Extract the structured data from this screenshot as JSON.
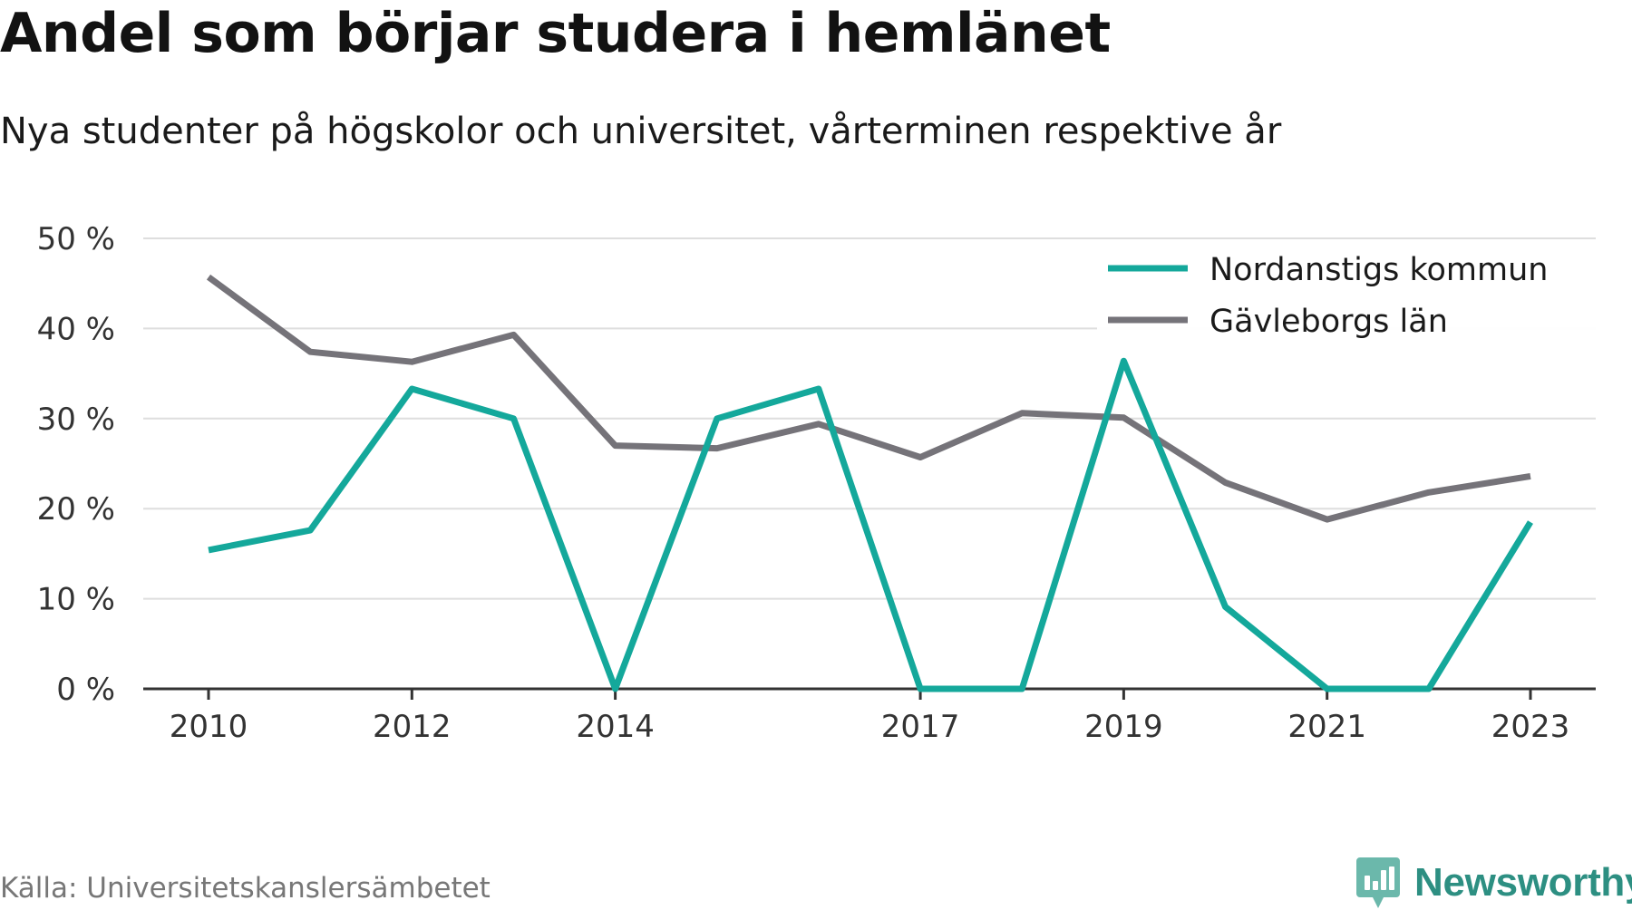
{
  "header": {
    "title": "Andel som börjar studera i hemlänet",
    "subtitle": "Nya studenter på högskolor och universitet, vårterminen respektive år"
  },
  "footer": {
    "source": "Källa: Universitetskanslersämbetet",
    "brand": "Newsworthy",
    "brand_icon": "bar-chart-speech-bubble-icon"
  },
  "chart_data": {
    "type": "line",
    "title": "Andel som börjar studera i hemlänet",
    "subtitle": "Nya studenter på högskolor och universitet, vårterminen respektive år",
    "x": [
      2010,
      2011,
      2012,
      2013,
      2014,
      2015,
      2016,
      2017,
      2018,
      2019,
      2020,
      2021,
      2022,
      2023
    ],
    "x_tick_labels": [
      "2010",
      "2012",
      "2014",
      "2017",
      "2019",
      "2021",
      "2023"
    ],
    "y_tick_labels": [
      "0 %",
      "10 %",
      "20 %",
      "30 %",
      "40 %",
      "50 %"
    ],
    "ylim": [
      0,
      50
    ],
    "grid": true,
    "legend_position": "top-right",
    "series": [
      {
        "name": "Nordanstigs kommun",
        "color": "#14a89b",
        "values": [
          15.4,
          17.6,
          33.3,
          30.0,
          0.0,
          30.0,
          33.3,
          0.0,
          0.0,
          36.4,
          9.1,
          0.0,
          0.0,
          18.5
        ]
      },
      {
        "name": "Gävleborgs län",
        "color": "#757379",
        "values": [
          45.7,
          37.4,
          36.3,
          39.3,
          27.0,
          26.7,
          29.4,
          25.7,
          30.6,
          30.1,
          22.9,
          18.8,
          21.8,
          23.6
        ]
      }
    ]
  }
}
